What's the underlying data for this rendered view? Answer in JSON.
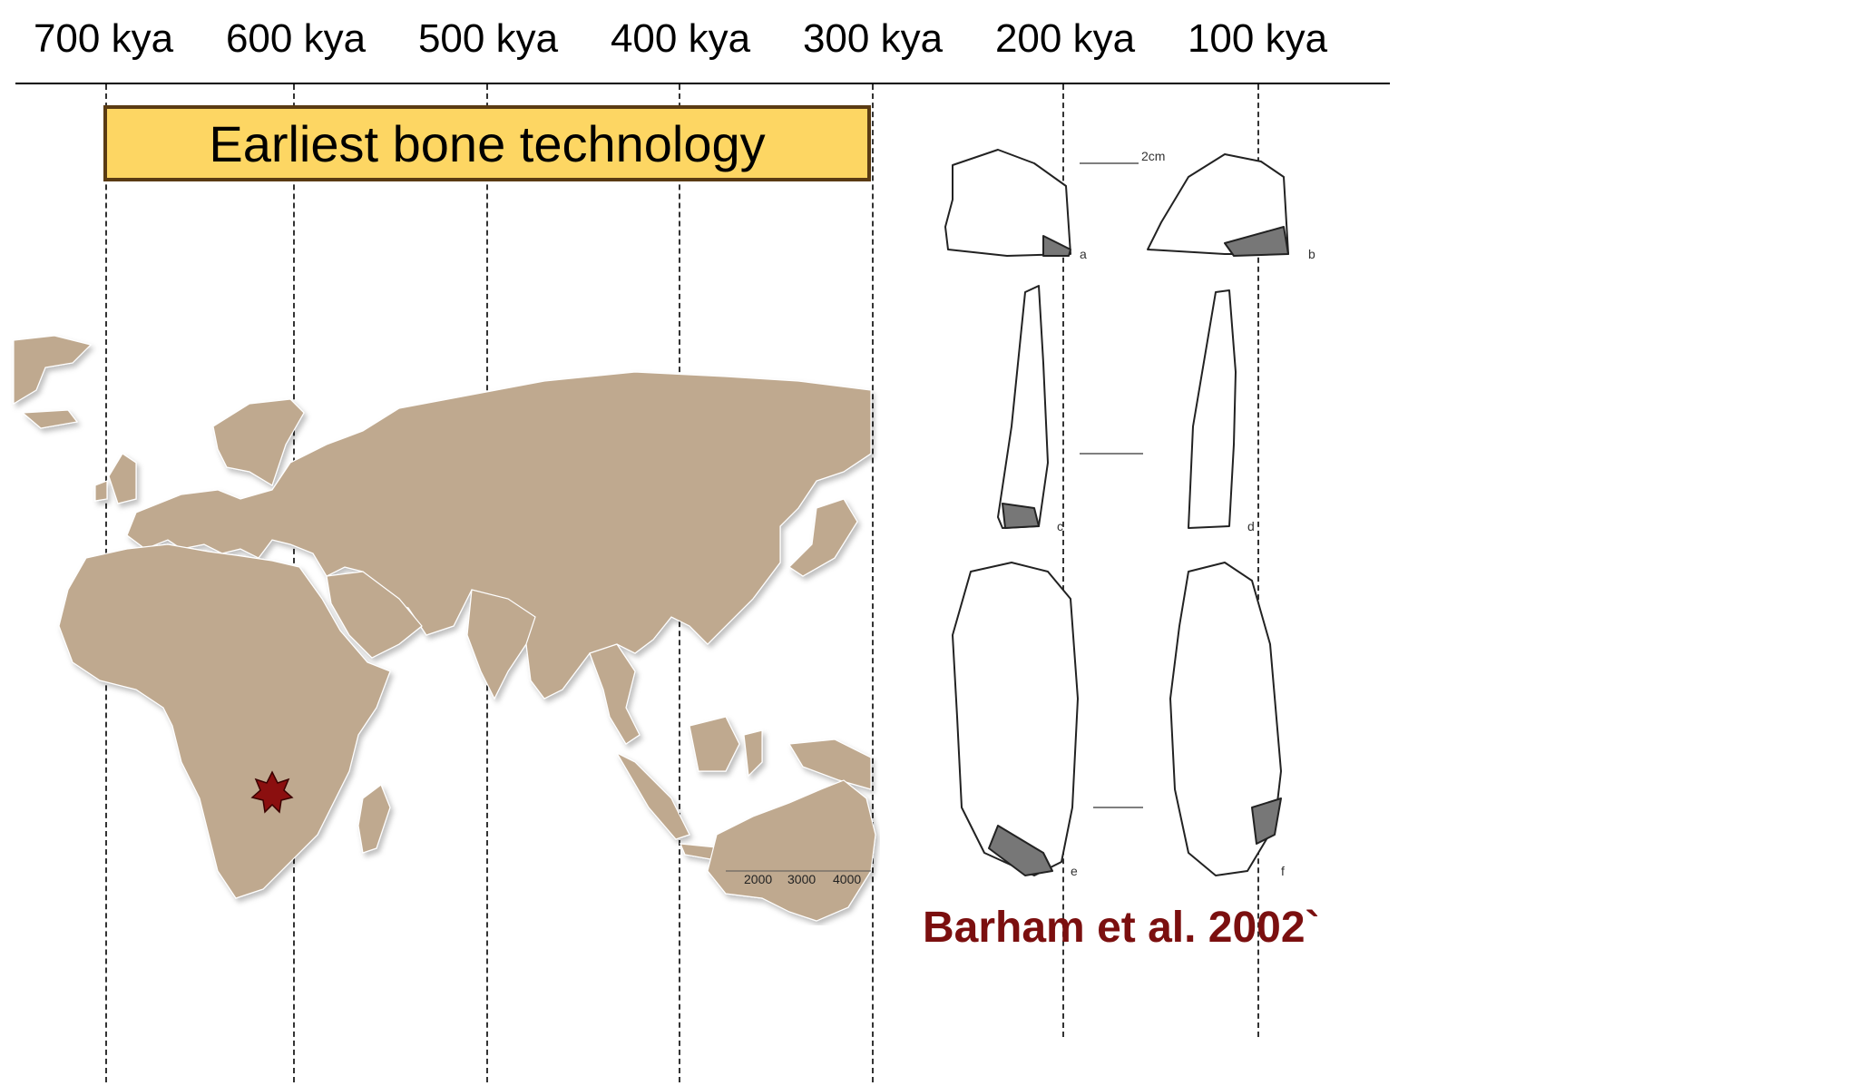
{
  "timeline": {
    "ticks": [
      "700 kya",
      "600 kya",
      "500 kya",
      "400 kya",
      "300 kya",
      "200 kya",
      "100 kya"
    ]
  },
  "title": "Earliest bone technology",
  "map": {
    "scale_labels": [
      "2000",
      "3000",
      "4000"
    ],
    "marker": "star",
    "land_color": "#bfa98f",
    "marker_color": "#8b0f0f"
  },
  "artifacts": {
    "panel_labels": [
      "a",
      "b",
      "c",
      "d",
      "e",
      "f"
    ],
    "scale_unit": "2cm"
  },
  "citation": "Barham et al. 2002`",
  "colors": {
    "title_bg": "#fdd663",
    "title_border": "#5a3b13",
    "citation": "#7b0f0f"
  }
}
